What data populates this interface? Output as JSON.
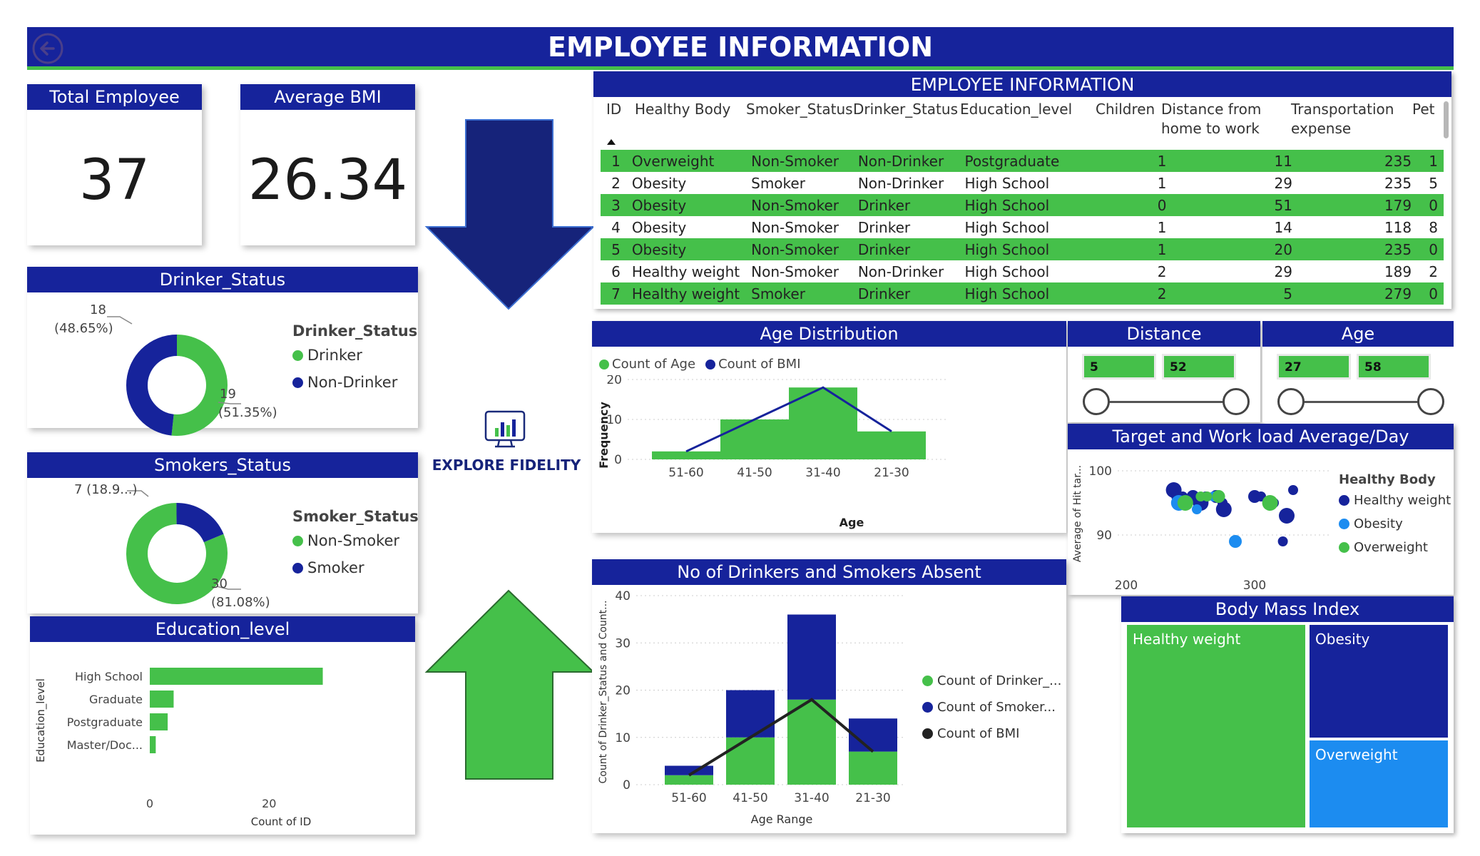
{
  "header": {
    "title": "EMPLOYEE INFORMATION",
    "back_icon": "back-arrow-icon"
  },
  "kpis": {
    "total_employee": {
      "label": "Total Employee",
      "value": "37"
    },
    "average_bmi": {
      "label": "Average BMI",
      "value": "26.34"
    }
  },
  "drinker_status": {
    "title": "Drinker_Status",
    "legend_title": "Drinker_Status",
    "legend": [
      "Drinker",
      "Non-Drinker"
    ],
    "label_top": "18",
    "label_top_pct": "(48.65%)",
    "label_bottom": "19",
    "label_bottom_pct": "(51.35%)"
  },
  "smokers_status": {
    "title": "Smokers_Status",
    "legend_title": "Smoker_Status",
    "legend": [
      "Non-Smoker",
      "Smoker"
    ],
    "label_top": "7 (18.9...)",
    "label_bottom": "30",
    "label_bottom_pct": "(81.08%)"
  },
  "education": {
    "title": "Education_level",
    "y_label": "Education_level",
    "x_label": "Count of ID",
    "categories": [
      "High School",
      "Graduate",
      "Postgraduate",
      "Master/Doc..."
    ],
    "ticks": [
      "0",
      "20"
    ]
  },
  "logo": {
    "text": "EXPLORE FIDELITY"
  },
  "table": {
    "title": "EMPLOYEE INFORMATION",
    "columns": [
      "ID",
      "Healthy Body",
      "Smoker_Status",
      "Drinker_Status",
      "Education_level",
      "Children",
      "Distance from",
      "home to work",
      "Transportation",
      "expense",
      "Pet"
    ],
    "rows": [
      [
        "1",
        "Overweight",
        "Non-Smoker",
        "Non-Drinker",
        "Postgraduate",
        "1",
        "11",
        "235",
        "1"
      ],
      [
        "2",
        "Obesity",
        "Smoker",
        "Non-Drinker",
        "High School",
        "1",
        "29",
        "235",
        "5"
      ],
      [
        "3",
        "Obesity",
        "Non-Smoker",
        "Drinker",
        "High School",
        "0",
        "51",
        "179",
        "0"
      ],
      [
        "4",
        "Obesity",
        "Non-Smoker",
        "Drinker",
        "High School",
        "1",
        "14",
        "118",
        "8"
      ],
      [
        "5",
        "Obesity",
        "Non-Smoker",
        "Drinker",
        "High School",
        "1",
        "20",
        "235",
        "0"
      ],
      [
        "6",
        "Healthy weight",
        "Non-Smoker",
        "Non-Drinker",
        "High School",
        "2",
        "29",
        "189",
        "2"
      ],
      [
        "7",
        "Healthy weight",
        "Smoker",
        "Drinker",
        "High School",
        "2",
        "5",
        "279",
        "0"
      ]
    ]
  },
  "age_dist": {
    "title": "Age Distribution",
    "legend": [
      "Count of Age",
      "Count of BMI"
    ],
    "y_label": "Frequency",
    "x_label": "Age",
    "y_ticks": [
      "0",
      "10",
      "20"
    ]
  },
  "distance_slicer": {
    "title": "Distance",
    "min": "5",
    "max": "52"
  },
  "age_slicer": {
    "title": "Age",
    "min": "27",
    "max": "58"
  },
  "target": {
    "title": "Target and Work load Average/Day",
    "y_label": "Average of Hit tar...",
    "y_ticks": [
      "100",
      "90"
    ],
    "x_ticks": [
      "200",
      "300"
    ],
    "legend_title": "Healthy Body",
    "legend": [
      "Healthy weight",
      "Obesity",
      "Overweight"
    ]
  },
  "absent": {
    "title": "No of Drinkers and Smokers Absent",
    "y_label": "Count of Drinker_Status and Count...",
    "x_label": "Age Range",
    "y_ticks": [
      "0",
      "10",
      "20",
      "30",
      "40"
    ],
    "legend": [
      "Count of Drinker_...",
      "Count of Smoker...",
      "Count of BMI"
    ]
  },
  "bmi": {
    "title": "Body Mass Index",
    "cells": [
      "Healthy weight",
      "Obesity",
      "Overweight"
    ]
  },
  "colors": {
    "navy": "#16239b",
    "green": "#45c04a",
    "light_blue": "#1c8cf0",
    "black": "#222222"
  },
  "chart_data": [
    {
      "type": "pie",
      "title": "Drinker_Status",
      "categories": [
        "Drinker",
        "Non-Drinker"
      ],
      "values": [
        19,
        18
      ]
    },
    {
      "type": "pie",
      "title": "Smokers_Status",
      "categories": [
        "Non-Smoker",
        "Smoker"
      ],
      "values": [
        30,
        7
      ]
    },
    {
      "type": "bar",
      "title": "Education_level",
      "categories": [
        "High School",
        "Graduate",
        "Postgraduate",
        "Master/Doc..."
      ],
      "values": [
        29,
        4,
        3,
        1
      ],
      "xlabel": "Count of ID",
      "ylabel": "Education_level",
      "xlim": [
        0,
        30
      ]
    },
    {
      "type": "bar",
      "title": "Age Distribution",
      "categories": [
        "51-60",
        "41-50",
        "31-40",
        "21-30"
      ],
      "series": [
        {
          "name": "Count of Age",
          "values": [
            2,
            10,
            18,
            7
          ]
        },
        {
          "name": "Count of BMI",
          "values": [
            2,
            10,
            18,
            7
          ]
        }
      ],
      "xlabel": "Age",
      "ylabel": "Frequency",
      "ylim": [
        0,
        20
      ]
    },
    {
      "type": "scatter",
      "title": "Target and Work load Average/Day",
      "xlim": [
        200,
        350
      ],
      "ylim": [
        85,
        100
      ],
      "series": [
        {
          "name": "Healthy weight",
          "points": [
            [
              237,
              97
            ],
            [
              239,
              96
            ],
            [
              244,
              96
            ],
            [
              252,
              96
            ],
            [
              258,
              95
            ],
            [
              262,
              96
            ],
            [
              270,
              96
            ],
            [
              275,
              95
            ],
            [
              276,
              94
            ],
            [
              300,
              96
            ],
            [
              305,
              96
            ],
            [
              315,
              95
            ],
            [
              325,
              93
            ],
            [
              330,
              97
            ],
            [
              322,
              89
            ]
          ]
        },
        {
          "name": "Obesity",
          "points": [
            [
              241,
              95
            ],
            [
              255,
              94
            ],
            [
              268,
              96
            ],
            [
              285,
              89
            ]
          ]
        },
        {
          "name": "Overweight",
          "points": [
            [
              246,
              95
            ],
            [
              258,
              96
            ],
            [
              263,
              96
            ],
            [
              272,
              96
            ],
            [
              312,
              95
            ]
          ]
        }
      ]
    },
    {
      "type": "bar",
      "title": "No of Drinkers and Smokers Absent",
      "categories": [
        "51-60",
        "41-50",
        "31-40",
        "21-30"
      ],
      "series": [
        {
          "name": "Count of Drinker_...",
          "values": [
            2,
            10,
            18,
            7
          ]
        },
        {
          "name": "Count of Smoker...",
          "values": [
            2,
            10,
            18,
            7
          ]
        },
        {
          "name": "Count of BMI",
          "values": [
            2,
            10,
            18,
            7
          ]
        }
      ],
      "xlabel": "Age Range",
      "ylabel": "Count of Drinker_Status and Count...",
      "ylim": [
        0,
        40
      ]
    },
    {
      "type": "heatmap",
      "title": "Body Mass Index",
      "categories": [
        "Healthy weight",
        "Obesity",
        "Overweight"
      ],
      "values": [
        19,
        9,
        9
      ]
    }
  ]
}
